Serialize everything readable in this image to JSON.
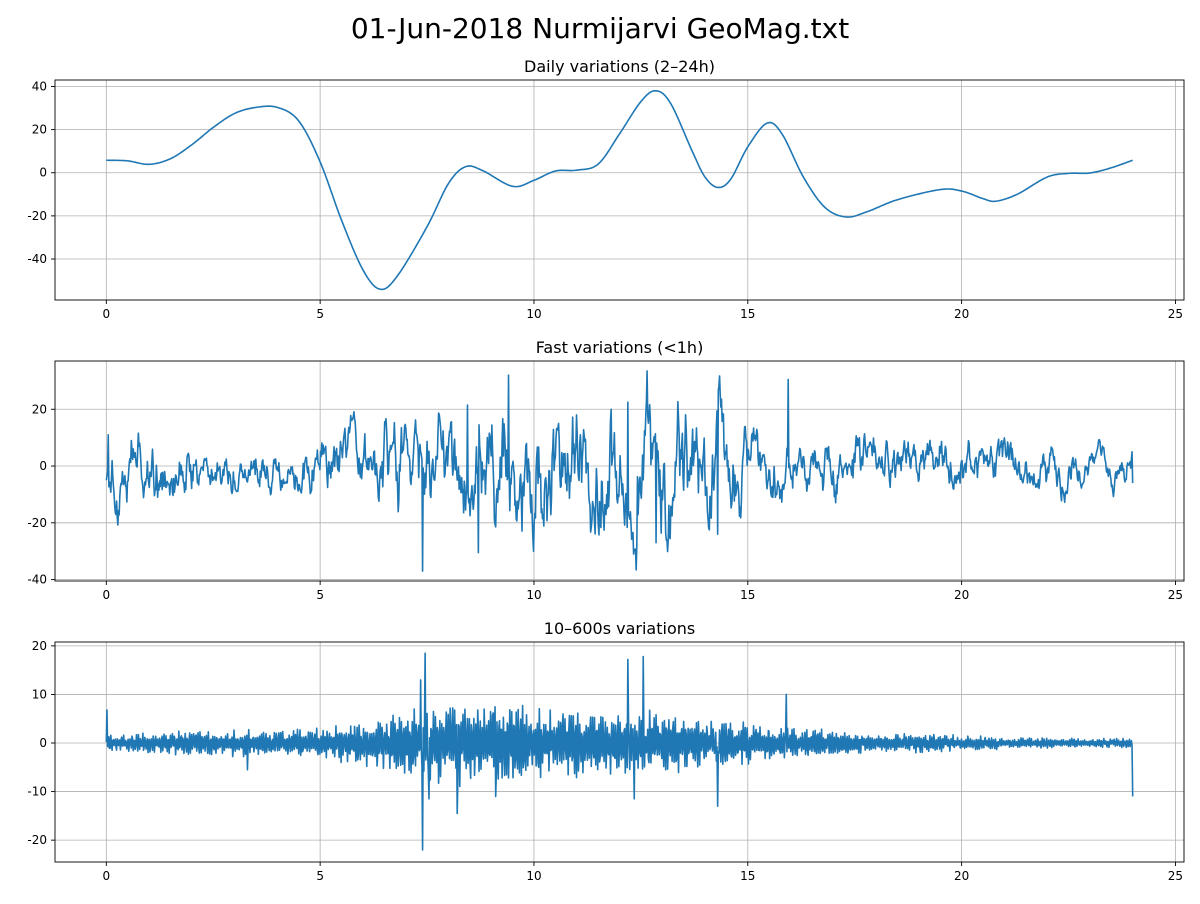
{
  "figure": {
    "suptitle": "01-Jun-2018 Nurmijarvi GeoMag.txt",
    "line_color": "#1f77b4",
    "grid_color": "#b0b0b0"
  },
  "chart_data": [
    {
      "type": "line",
      "title": "Daily variations (2–24h)",
      "xlabel": "",
      "ylabel": "",
      "xlim": [
        -1.2,
        25.2
      ],
      "ylim": [
        -59,
        43
      ],
      "xticks": [
        0,
        5,
        10,
        15,
        20,
        25
      ],
      "yticks": [
        -40,
        -20,
        0,
        20,
        40
      ],
      "grid": true,
      "series": [
        {
          "kind": "smooth",
          "points": [
            [
              0,
              5.8
            ],
            [
              0.5,
              5.5
            ],
            [
              1,
              3.9
            ],
            [
              1.5,
              6.5
            ],
            [
              2,
              13
            ],
            [
              2.5,
              21
            ],
            [
              3,
              27.5
            ],
            [
              3.5,
              30.3
            ],
            [
              4,
              30.3
            ],
            [
              4.5,
              24
            ],
            [
              5,
              5
            ],
            [
              5.5,
              -22
            ],
            [
              6,
              -45
            ],
            [
              6.4,
              -54
            ],
            [
              6.8,
              -48
            ],
            [
              7.5,
              -25
            ],
            [
              8,
              -5
            ],
            [
              8.4,
              2.8
            ],
            [
              8.8,
              1
            ],
            [
              9.5,
              -6.3
            ],
            [
              10,
              -3.5
            ],
            [
              10.5,
              0.8
            ],
            [
              11,
              1.2
            ],
            [
              11.5,
              4
            ],
            [
              12,
              18
            ],
            [
              12.5,
              33
            ],
            [
              12.85,
              38
            ],
            [
              13.2,
              32
            ],
            [
              13.7,
              10
            ],
            [
              14,
              -2
            ],
            [
              14.3,
              -6.8
            ],
            [
              14.6,
              -3
            ],
            [
              15,
              12
            ],
            [
              15.45,
              23
            ],
            [
              15.8,
              18
            ],
            [
              16.3,
              -2
            ],
            [
              16.8,
              -16
            ],
            [
              17.3,
              -20.5
            ],
            [
              17.8,
              -18
            ],
            [
              18.5,
              -12.5
            ],
            [
              19.5,
              -7.8
            ],
            [
              20,
              -8.5
            ],
            [
              20.5,
              -12
            ],
            [
              20.8,
              -13.2
            ],
            [
              21.3,
              -10
            ],
            [
              22,
              -2
            ],
            [
              22.5,
              -0.3
            ],
            [
              23,
              -0.1
            ],
            [
              23.5,
              2.3
            ],
            [
              24,
              5.8
            ]
          ]
        }
      ]
    },
    {
      "type": "line",
      "title": "Fast variations (<1h)",
      "xlabel": "",
      "ylabel": "",
      "xlim": [
        -1.2,
        25.2
      ],
      "ylim": [
        -40.5,
        37
      ],
      "xticks": [
        0,
        5,
        10,
        15,
        20,
        25
      ],
      "yticks": [
        -40,
        -20,
        0,
        20
      ],
      "grid": true,
      "envelope": [
        [
          0,
          10
        ],
        [
          1,
          9
        ],
        [
          2,
          7
        ],
        [
          3,
          6
        ],
        [
          4,
          6
        ],
        [
          5,
          7
        ],
        [
          6,
          9
        ],
        [
          7,
          13
        ],
        [
          8,
          14
        ],
        [
          9,
          16
        ],
        [
          10,
          16
        ],
        [
          11,
          16
        ],
        [
          12,
          17
        ],
        [
          13,
          17
        ],
        [
          14,
          15
        ],
        [
          15,
          10
        ],
        [
          16,
          8
        ],
        [
          17,
          7
        ],
        [
          18,
          7
        ],
        [
          19,
          7
        ],
        [
          20,
          6
        ],
        [
          21,
          6
        ],
        [
          22,
          6
        ],
        [
          23,
          5
        ],
        [
          24,
          5
        ]
      ],
      "spikes": [
        [
          0.05,
          11
        ],
        [
          1.2,
          -11
        ],
        [
          7.4,
          -37
        ],
        [
          8.45,
          21.5
        ],
        [
          8.7,
          -30.5
        ],
        [
          9.4,
          32
        ],
        [
          11.8,
          20
        ],
        [
          12.2,
          22.5
        ],
        [
          12.4,
          -28
        ],
        [
          12.65,
          33.5
        ],
        [
          12.85,
          -27
        ],
        [
          14.3,
          -24
        ],
        [
          15.95,
          30.5
        ]
      ],
      "last_value": -6
    },
    {
      "type": "line",
      "title": "10–600s variations",
      "xlabel": "",
      "ylabel": "",
      "xlim": [
        -1.2,
        25.2
      ],
      "ylim": [
        -24.5,
        20.8
      ],
      "xticks": [
        0,
        5,
        10,
        15,
        20,
        25
      ],
      "yticks": [
        -20,
        -10,
        0,
        10,
        20
      ],
      "grid": true,
      "envelope": [
        [
          0,
          1.5
        ],
        [
          1,
          2
        ],
        [
          2,
          2.5
        ],
        [
          3,
          2.8
        ],
        [
          4,
          2.5
        ],
        [
          5,
          3
        ],
        [
          6,
          4.5
        ],
        [
          7,
          6
        ],
        [
          8,
          8.5
        ],
        [
          9,
          8
        ],
        [
          10,
          7
        ],
        [
          11,
          7
        ],
        [
          12,
          7
        ],
        [
          13,
          6
        ],
        [
          14,
          5
        ],
        [
          15,
          4
        ],
        [
          16,
          3
        ],
        [
          17,
          2.5
        ],
        [
          18,
          2
        ],
        [
          19,
          2
        ],
        [
          20,
          1.5
        ],
        [
          21,
          1.2
        ],
        [
          22,
          1
        ],
        [
          23,
          1
        ],
        [
          24,
          1
        ]
      ],
      "spikes": [
        [
          0.02,
          6.8
        ],
        [
          3.3,
          -5.5
        ],
        [
          7.35,
          13
        ],
        [
          7.4,
          -22
        ],
        [
          7.45,
          18.5
        ],
        [
          7.55,
          -11.5
        ],
        [
          8.2,
          -14.5
        ],
        [
          9.1,
          -11
        ],
        [
          12.2,
          17.2
        ],
        [
          12.35,
          -11.5
        ],
        [
          12.55,
          17.8
        ],
        [
          14.3,
          -13
        ],
        [
          15.9,
          10
        ]
      ],
      "last_value": -11
    }
  ]
}
